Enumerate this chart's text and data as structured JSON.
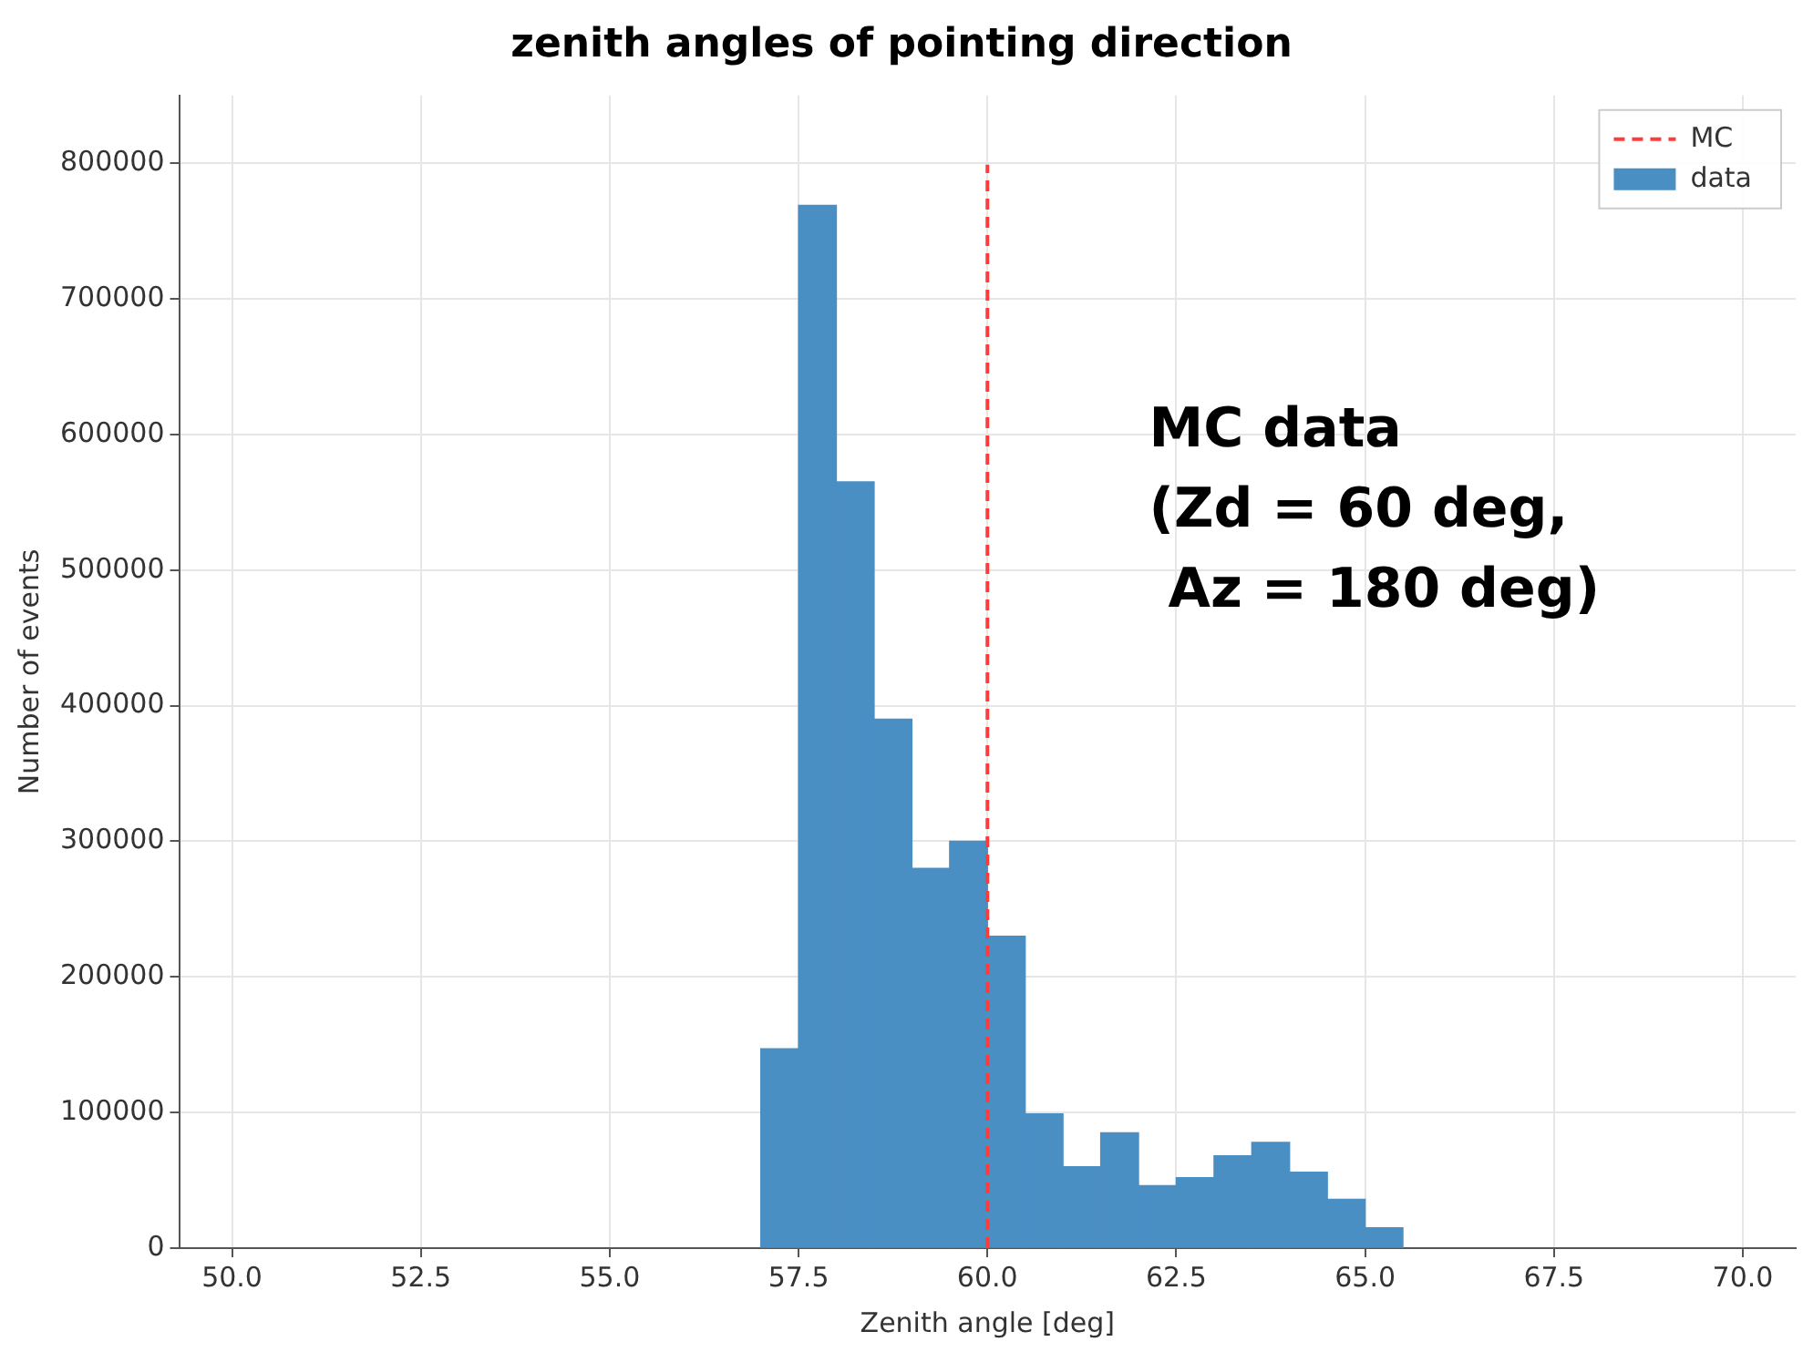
{
  "chart_data": {
    "type": "histogram",
    "title": "zenith angles of pointing direction",
    "xlabel": "Zenith angle [deg]",
    "ylabel": "Number of events",
    "bins": [
      57,
      57.5,
      58,
      58.5,
      59,
      59.5,
      60,
      60.5,
      61,
      61.5,
      62,
      62.5,
      63,
      63.5,
      64,
      64.5,
      65,
      65.5
    ],
    "series": [
      {
        "name": "data",
        "color": "#4a8fc4",
        "values": [
          147000,
          769000,
          565000,
          390000,
          280000,
          300000,
          230000,
          99000,
          60000,
          85000,
          46000,
          52000,
          68000,
          78000,
          56000,
          36000,
          15000
        ]
      }
    ],
    "xlim": [
      49.3,
      70.7
    ],
    "xticks": [
      {
        "value": 50,
        "label": "50.0"
      },
      {
        "value": 52.5,
        "label": "52.5"
      },
      {
        "value": 55,
        "label": "55.0"
      },
      {
        "value": 57.5,
        "label": "57.5"
      },
      {
        "value": 60,
        "label": "60.0"
      },
      {
        "value": 62.5,
        "label": "62.5"
      },
      {
        "value": 65,
        "label": "65.0"
      },
      {
        "value": 67.5,
        "label": "67.5"
      },
      {
        "value": 70,
        "label": "70.0"
      }
    ],
    "ylim": [
      0,
      850000
    ],
    "yticks": [
      0,
      100000,
      200000,
      300000,
      400000,
      500000,
      600000,
      700000,
      800000
    ],
    "ref_lines": [
      {
        "axis": "x",
        "value": 60,
        "label": "MC",
        "color": "#ff3b3b",
        "line_style": "dashed"
      }
    ],
    "annotations": [
      "MC data\n(Zd = 60 deg,\n Az = 180 deg)"
    ],
    "grid": true,
    "legend": "top right"
  }
}
